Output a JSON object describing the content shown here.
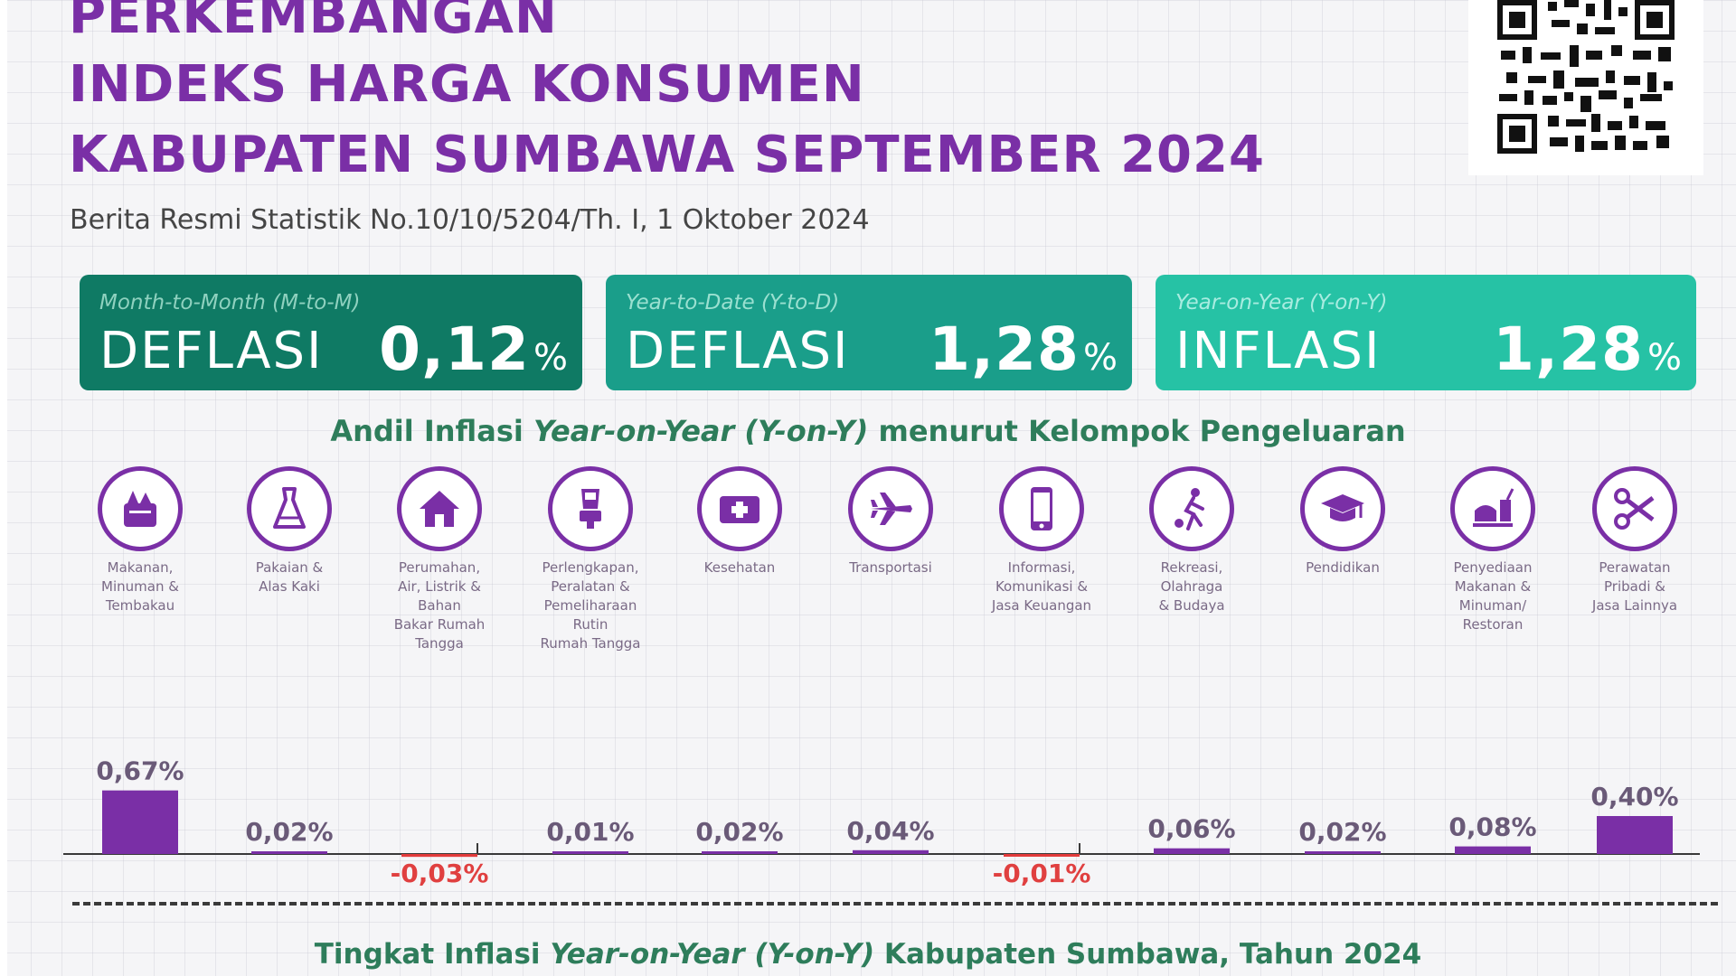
{
  "header": {
    "title_lines": [
      "PERKEMBANGAN",
      "INDEKS HARGA KONSUMEN",
      "KABUPATEN SUMBAWA SEPTEMBER 2024"
    ],
    "subtitle": "Berita Resmi Statistik No.10/10/5204/Th. I, 1 Oktober 2024",
    "qr_icon": "qr-code-icon"
  },
  "cards": [
    {
      "period": "Month-to-Month (M-to-M)",
      "kind": "DEFLASI",
      "value": "0,12",
      "unit": "%",
      "color": "#0f7a64"
    },
    {
      "period": "Year-to-Date (Y-to-D)",
      "kind": "DEFLASI",
      "value": "1,28",
      "unit": "%",
      "color": "#1a9e8a"
    },
    {
      "period": "Year-on-Year (Y-on-Y)",
      "kind": "INFLASI",
      "value": "1,28",
      "unit": "%",
      "color": "#26c2a5"
    }
  ],
  "section": {
    "title_prefix": "Andil Inflasi ",
    "title_italic": "Year-on-Year (Y-on-Y)",
    "title_suffix": " menurut Kelompok Pengeluaran"
  },
  "categories": [
    {
      "label": "Makanan,\nMinuman &\nTembakau",
      "icon": "food-basket-icon"
    },
    {
      "label": "Pakaian &\nAlas Kaki",
      "icon": "dress-icon"
    },
    {
      "label": "Perumahan,\nAir, Listrik &\nBahan\nBakar Rumah\nTangga",
      "icon": "house-icon"
    },
    {
      "label": "Perlengkapan,\nPeralatan &\nPemeliharaan\nRutin\nRumah Tangga",
      "icon": "blender-icon"
    },
    {
      "label": "Kesehatan",
      "icon": "first-aid-kit-icon"
    },
    {
      "label": "Transportasi",
      "icon": "airplane-icon"
    },
    {
      "label": "Informasi,\nKomunikasi &\nJasa Keuangan",
      "icon": "smartphone-icon"
    },
    {
      "label": "Rekreasi,\nOlahraga\n& Budaya",
      "icon": "soccer-player-icon"
    },
    {
      "label": "Pendidikan",
      "icon": "graduation-cap-icon"
    },
    {
      "label": "Penyediaan\nMakanan &\nMinuman/\nRestoran",
      "icon": "meal-icon"
    },
    {
      "label": "Perawatan\nPribadi &\nJasa Lainnya",
      "icon": "scissors-comb-icon"
    }
  ],
  "chart_data": {
    "type": "bar",
    "categories": [
      "Makanan, Minuman & Tembakau",
      "Pakaian & Alas Kaki",
      "Perumahan, Air, Listrik & Bahan Bakar Rumah Tangga",
      "Perlengkapan, Peralatan & Pemeliharaan Rutin Rumah Tangga",
      "Kesehatan",
      "Transportasi",
      "Informasi, Komunikasi & Jasa Keuangan",
      "Rekreasi, Olahraga & Budaya",
      "Pendidikan",
      "Penyediaan Makanan & Minuman/ Restoran",
      "Perawatan Pribadi & Jasa Lainnya"
    ],
    "values": [
      0.67,
      0.02,
      -0.03,
      0.01,
      0.02,
      0.04,
      -0.01,
      0.06,
      0.02,
      0.08,
      0.4
    ],
    "data_labels": [
      "0,67%",
      "0,02%",
      "-0,03%",
      "0,01%",
      "0,02%",
      "0,04%",
      "-0,01%",
      "0,06%",
      "0,02%",
      "0,08%",
      "0,40%"
    ],
    "title": "Andil Inflasi Year-on-Year (Y-on-Y) menurut Kelompok Pengeluaran",
    "positive_color": "#7a2fa6",
    "negative_color": "#e23b3b",
    "positive_label_color": "#6a5a78",
    "negative_label_color": "#e04040",
    "grid": true
  },
  "footer": {
    "title_prefix": "Tingkat Inflasi ",
    "title_italic": "Year-on-Year (Y-on-Y)",
    "title_suffix": " Kabupaten Sumbawa, Tahun 2024"
  }
}
